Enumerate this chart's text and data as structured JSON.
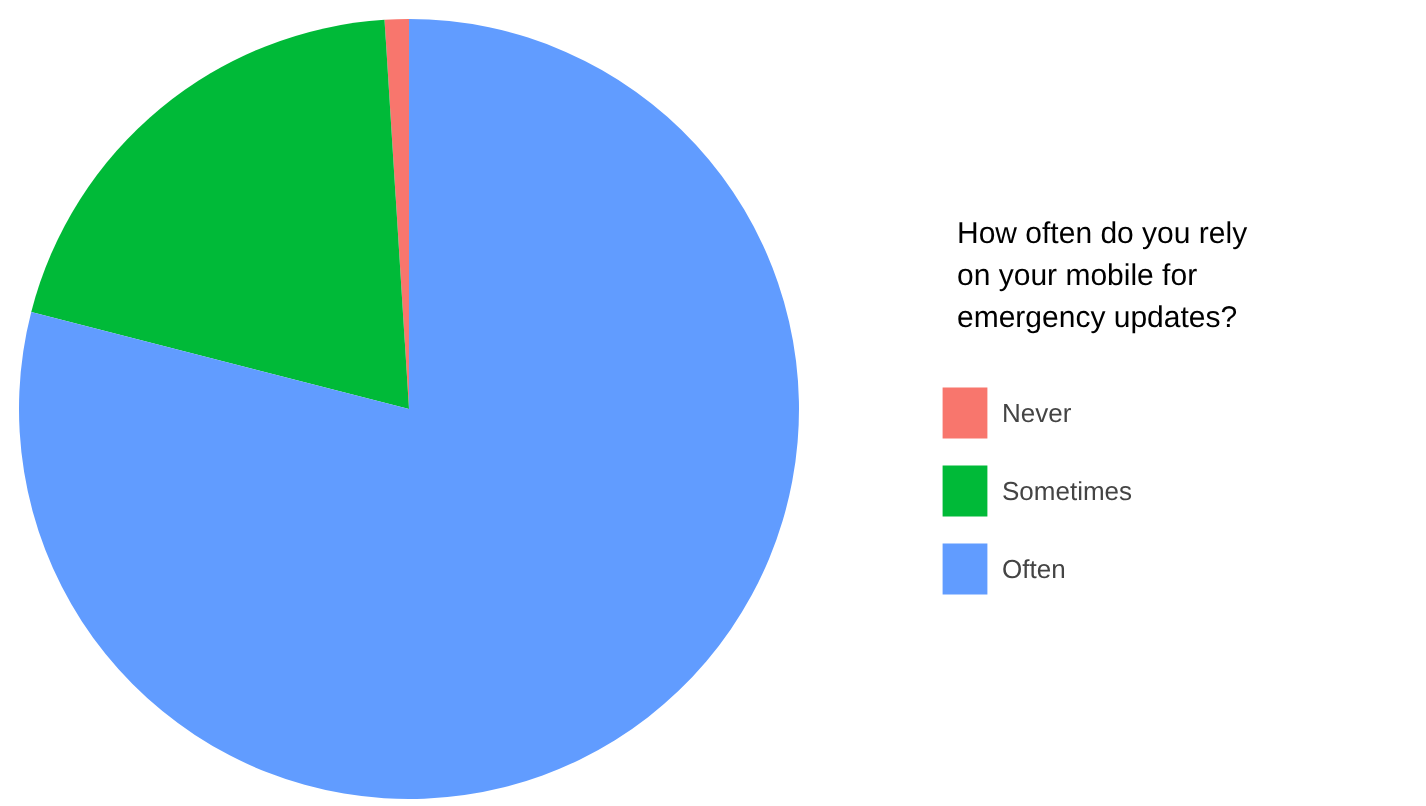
{
  "chart_data": {
    "type": "pie",
    "legend_title": "How often do you rely on your mobile for emergency updates?",
    "legend": "right",
    "categories": [
      "Never",
      "Sometimes",
      "Often"
    ],
    "values": [
      1,
      20,
      79
    ],
    "colors": [
      "#f8766d",
      "#00ba38",
      "#619cff"
    ]
  }
}
